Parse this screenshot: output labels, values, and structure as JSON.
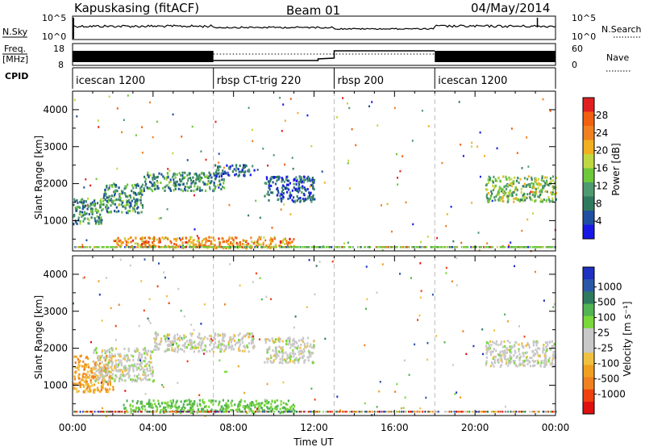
{
  "header": {
    "station": "Kapuskasing (fitACF)",
    "beam": "Beam 01",
    "date": "04/May/2014"
  },
  "panel_labels": {
    "nsky": "N.Sky",
    "nsearch": "N.Search",
    "freq_line1": "Freq.",
    "freq_line2": "[MHz]",
    "nave": "Nave",
    "cpid": "CPID",
    "nsky_ticks": [
      "10^5",
      "10^0"
    ],
    "nsearch_ticks": [
      "10^5",
      "10^0"
    ],
    "freq_ticks": [
      "18",
      "8"
    ],
    "nave_ticks": [
      "60",
      "0"
    ]
  },
  "cpid_segments": [
    {
      "label": "icescan 1200",
      "start_hour": 0,
      "end_hour": 7
    },
    {
      "label": "rbsp CT-trig 220",
      "start_hour": 7,
      "end_hour": 13
    },
    {
      "label": "rbsp 200",
      "start_hour": 13,
      "end_hour": 18
    },
    {
      "label": "icescan 1200",
      "start_hour": 18,
      "end_hour": 24
    }
  ],
  "x_axis": {
    "label": "Time UT",
    "ticks": [
      "00:00",
      "04:00",
      "08:00",
      "12:00",
      "16:00",
      "20:00",
      "00:00"
    ]
  },
  "y_axis": {
    "label": "Slant Range [km]",
    "ticks": [
      "1000",
      "2000",
      "3000",
      "4000"
    ]
  },
  "power_scale": {
    "label": "Power [dB]",
    "ticks": [
      "4",
      "8",
      "12",
      "16",
      "20",
      "24",
      "28"
    ],
    "colors": [
      "#1818e6",
      "#1f4fa0",
      "#2f7a5e",
      "#4f9a6f",
      "#6dc83a",
      "#c0d840",
      "#f0b020",
      "#f08020",
      "#f06010",
      "#e02020"
    ]
  },
  "velocity_scale": {
    "label": "Velocity [m s⁻¹]",
    "ticks": [
      "1000",
      "500",
      "100",
      "25",
      "-25",
      "-100",
      "-500",
      "-1000"
    ],
    "colors": [
      "#2030c0",
      "#2a58a8",
      "#2f7a5e",
      "#52b452",
      "#7ad83a",
      "#c8c8c8",
      "#c8c8c8",
      "#f0c040",
      "#f0a020",
      "#f08020",
      "#f04010",
      "#e01010"
    ]
  },
  "chart_data": [
    {
      "type": "heatmap",
      "title": "Power",
      "x": [
        0,
        24
      ],
      "xlim": [
        0,
        24
      ],
      "ylim": [
        180,
        4500
      ],
      "xlabel": "Time UT",
      "ylabel": "Slant Range [km]",
      "series": [
        {
          "name": "",
          "segments": [
            {
              "t0": 0.0,
              "t1": 1.5,
              "r0": 900,
              "r1": 1600,
              "level": 8
            },
            {
              "t0": 1.5,
              "t1": 3.5,
              "r0": 1200,
              "r1": 2000,
              "level": 8
            },
            {
              "t0": 3.5,
              "t1": 7.5,
              "r0": 1800,
              "r1": 2300,
              "level": 8
            },
            {
              "t0": 7.0,
              "t1": 9.0,
              "r0": 2200,
              "r1": 2500,
              "level": 4
            },
            {
              "t0": 9.5,
              "t1": 12.0,
              "r0": 1500,
              "r1": 2200,
              "level": 4
            },
            {
              "t0": 2.0,
              "t1": 11.0,
              "r0": 250,
              "r1": 550,
              "level": 20
            },
            {
              "t0": 20.5,
              "t1": 24.0,
              "r0": 1500,
              "r1": 2200,
              "level": 12
            }
          ]
        }
      ]
    },
    {
      "type": "heatmap",
      "title": "Velocity",
      "x": [
        0,
        24
      ],
      "xlim": [
        0,
        24
      ],
      "ylim": [
        180,
        4500
      ],
      "xlabel": "Time UT",
      "ylabel": "Slant Range [km]",
      "series": [
        {
          "name": "",
          "segments": [
            {
              "t0": 0.0,
              "t1": 2.0,
              "r0": 800,
              "r1": 1800,
              "velocity": -200
            },
            {
              "t0": 1.0,
              "t1": 4.0,
              "r0": 1100,
              "r1": 2000,
              "velocity": 0
            },
            {
              "t0": 4.0,
              "t1": 9.0,
              "r0": 1900,
              "r1": 2400,
              "velocity": 0
            },
            {
              "t0": 9.5,
              "t1": 12.0,
              "r0": 1600,
              "r1": 2300,
              "velocity": 0
            },
            {
              "t0": 2.5,
              "t1": 11.0,
              "r0": 250,
              "r1": 600,
              "velocity": 150
            },
            {
              "t0": 20.5,
              "t1": 24.0,
              "r0": 1500,
              "r1": 2200,
              "velocity": 0
            }
          ]
        }
      ]
    }
  ]
}
